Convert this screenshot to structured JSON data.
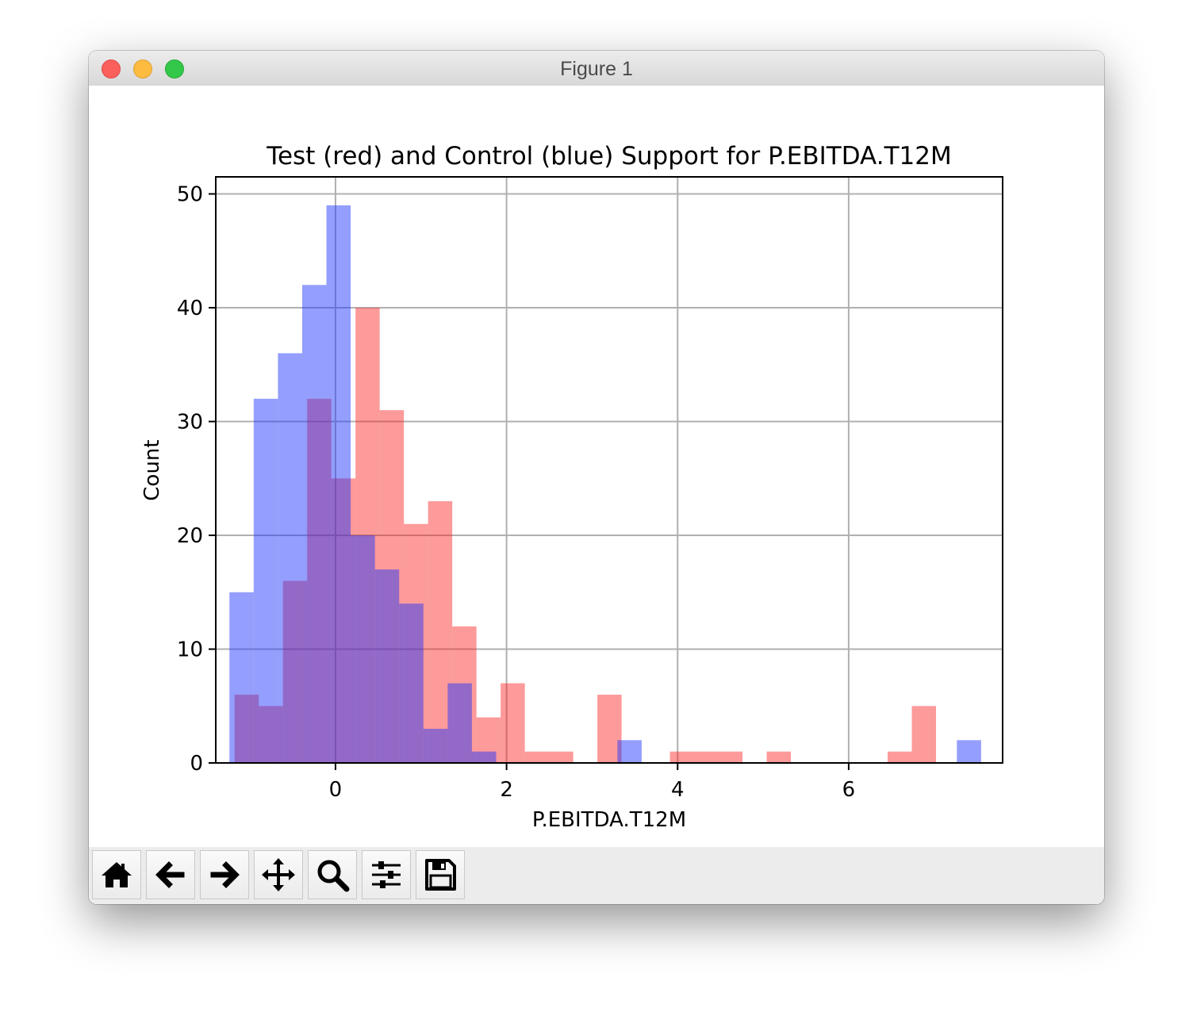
{
  "window": {
    "title": "Figure 1"
  },
  "toolbar": {
    "buttons": [
      {
        "name": "home-button",
        "icon": "home-icon"
      },
      {
        "name": "back-button",
        "icon": "arrow-left-icon"
      },
      {
        "name": "forward-button",
        "icon": "arrow-right-icon"
      },
      {
        "name": "pan-button",
        "icon": "move-icon"
      },
      {
        "name": "zoom-button",
        "icon": "magnifier-icon"
      },
      {
        "name": "configure-subplots-button",
        "icon": "sliders-icon"
      },
      {
        "name": "save-button",
        "icon": "floppy-disk-icon"
      }
    ]
  },
  "chart_data": {
    "type": "bar",
    "title": "Test (red) and Control (blue) Support for P.EBITDA.T12M",
    "xlabel": "P.EBITDA.T12M",
    "ylabel": "Count",
    "xlim": [
      -1.4,
      7.8
    ],
    "ylim": [
      0,
      51.5
    ],
    "xticks": [
      0,
      2,
      4,
      6
    ],
    "yticks": [
      0,
      10,
      20,
      30,
      40,
      50
    ],
    "grid": true,
    "series": [
      {
        "color": "#fa1f1f",
        "opacity": 0.45,
        "bin_start": -1.18,
        "bin_width": 0.2828,
        "values": [
          6,
          5,
          16,
          32,
          25,
          40,
          31,
          21,
          23,
          12,
          4,
          7,
          1,
          1,
          0,
          6,
          0,
          0,
          1,
          1,
          1,
          0,
          1,
          0,
          0,
          0,
          0,
          1,
          5
        ]
      },
      {
        "color": "#1f34fa",
        "opacity": 0.48,
        "bin_start": -1.24,
        "bin_width": 0.2835,
        "values": [
          15,
          32,
          36,
          42,
          49,
          20,
          17,
          14,
          3,
          7,
          1,
          0,
          0,
          0,
          0,
          0,
          2,
          0,
          0,
          0,
          0,
          0,
          0,
          0,
          0,
          0,
          0,
          0,
          0,
          0,
          2
        ]
      }
    ]
  }
}
